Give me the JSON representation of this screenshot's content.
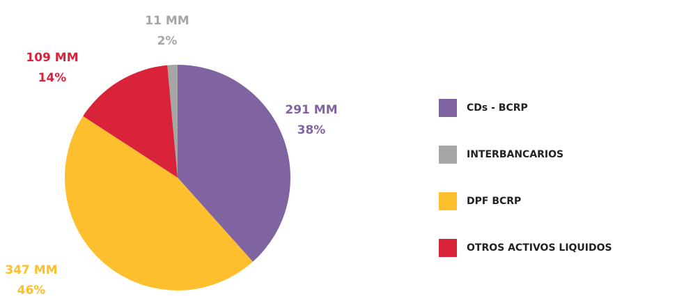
{
  "chart_data": {
    "type": "pie",
    "categories": [
      "CDs - BCRP",
      "INTERBANCARIOS",
      "DPF BCRP",
      "OTROS ACTIVOS LIQUIDOS"
    ],
    "values": [
      291,
      11,
      347,
      109
    ],
    "value_labels": [
      "291 MM",
      "11 MM",
      "347 MM",
      "109 MM"
    ],
    "shares": [
      {
        "value": 38,
        "label": "38%"
      },
      {
        "value": 2,
        "label": "2%"
      },
      {
        "value": 46,
        "label": "46%"
      },
      {
        "value": 14,
        "label": "14%"
      }
    ],
    "colors": [
      "#8064a2",
      "#a6a6a6",
      "#fdbf2d",
      "#d9233a"
    ],
    "legend": "right"
  }
}
